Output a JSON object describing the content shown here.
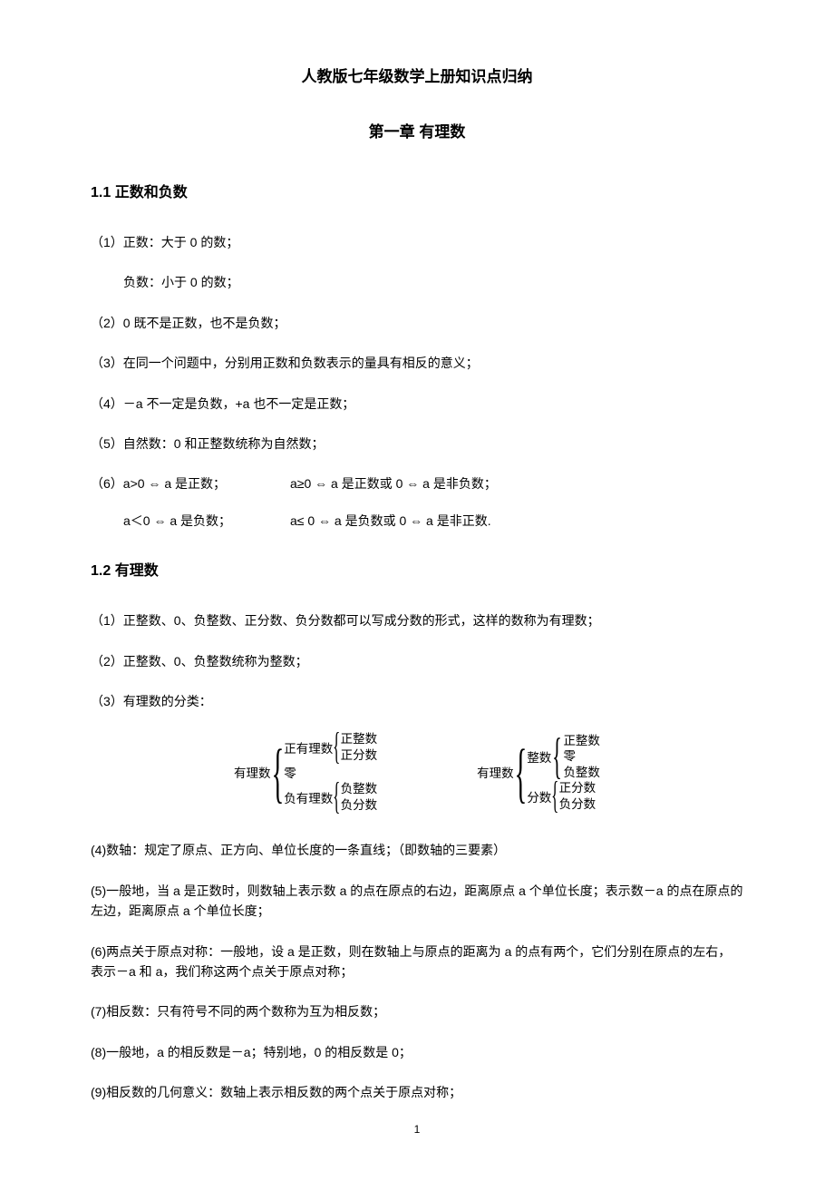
{
  "doc_title": "人教版七年级数学上册知识点归纳",
  "chapter_title": "第一章 有理数",
  "s11": {
    "title": "1.1 正数和负数",
    "p1": "（1）正数：大于 0 的数；",
    "p1b": "负数：小于 0 的数；",
    "p2": "（2）0 既不是正数，也不是负数；",
    "p3": "（3）在同一个问题中，分别用正数和负数表示的量具有相反的意义；",
    "p4": "（4）－a 不一定是负数，+a 也不一定是正数；",
    "p5": "（5）自然数：0 和正整数统称为自然数；",
    "p6a": "（6）a>0 ⇔ a 是正数；",
    "p6b": "a≥0 ⇔ a 是正数或 0 ⇔ a 是非负数；",
    "p6c": "a＜0 ⇔ a 是负数；",
    "p6d": "a≤ 0 ⇔ a 是负数或 0 ⇔ a 是非正数."
  },
  "s12": {
    "title": "1.2 有理数",
    "p1": "（1）正整数、0、负整数、正分数、负分数都可以写成分数的形式，这样的数称为有理数；",
    "p2": "（2）正整数、0、负整数统称为整数；",
    "p3": "（3）有理数的分类：",
    "tree1": {
      "root": "有理数",
      "c1": {
        "label": "正有理数",
        "leaves": [
          "正整数",
          "正分数"
        ]
      },
      "c2": {
        "label": "零"
      },
      "c3": {
        "label": "负有理数",
        "leaves": [
          "负整数",
          "负分数"
        ]
      }
    },
    "tree2": {
      "root": "有理数",
      "c1": {
        "label": "整数",
        "leaves": [
          "正整数",
          "零",
          "负整数"
        ]
      },
      "c2": {
        "label": "分数",
        "leaves": [
          "正分数",
          "负分数"
        ]
      }
    },
    "p4": "(4)数轴：规定了原点、正方向、单位长度的一条直线；（即数轴的三要素）",
    "p5": "(5)一般地，当 a 是正数时，则数轴上表示数 a 的点在原点的右边，距离原点 a 个单位长度；表示数－a 的点在原点的左边，距离原点 a 个单位长度；",
    "p6": "(6)两点关于原点对称：一般地，设 a 是正数，则在数轴上与原点的距离为 a 的点有两个，它们分别在原点的左右，表示－a 和 a，我们称这两个点关于原点对称；",
    "p7": "(7)相反数：只有符号不同的两个数称为互为相反数；",
    "p8": "(8)一般地，a 的相反数是－a；特别地，0 的相反数是 0；",
    "p9": "(9)相反数的几何意义：数轴上表示相反数的两个点关于原点对称；"
  },
  "page_number": "1"
}
